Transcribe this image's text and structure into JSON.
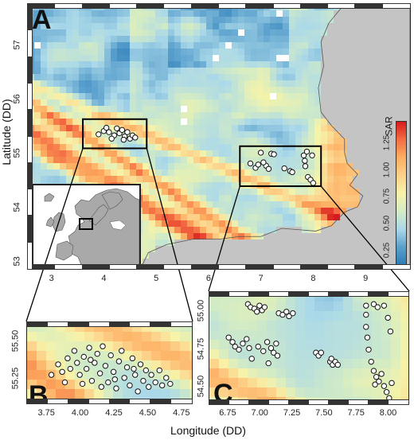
{
  "panels": {
    "A": {
      "letter": "A",
      "x_ticks": [
        "3",
        "4",
        "5",
        "6",
        "7",
        "8",
        "9"
      ],
      "y_ticks": [
        "53",
        "54",
        "55",
        "56",
        "57"
      ],
      "xlim": [
        2.55,
        9.85
      ],
      "ylim": [
        52.85,
        57.75
      ]
    },
    "B": {
      "letter": "B",
      "x_ticks": [
        "3.75",
        "4.00",
        "4.25",
        "4.50",
        "4.75"
      ],
      "y_ticks": [
        "55.25",
        "55.50"
      ],
      "xlim": [
        3.6,
        4.82
      ],
      "ylim": [
        55.08,
        55.62
      ]
    },
    "C": {
      "letter": "C",
      "x_ticks": [
        "6.75",
        "7.00",
        "7.25",
        "7.50",
        "7.75",
        "8.00"
      ],
      "y_ticks": [
        "54.50",
        "54.75",
        "55.00"
      ],
      "xlim": [
        6.6,
        8.15
      ],
      "ylim": [
        54.38,
        55.12
      ]
    }
  },
  "axes": {
    "x_title": "Longitude (DD)",
    "y_title": "Latitude (DD)"
  },
  "colorbar": {
    "title": "SAR",
    "ticks": [
      "0.25",
      "0.50",
      "0.75",
      "1.00",
      "1.25"
    ],
    "range": [
      0.1,
      1.45
    ],
    "colors": [
      "#2c7bb6",
      "#5aa0cd",
      "#abd9e9",
      "#d4ecc4",
      "#f7f3a8",
      "#fdd18a",
      "#fdae61",
      "#f46d43",
      "#d7191c"
    ]
  },
  "colors": {
    "land": "#c4c4c4",
    "frame": "#222222",
    "tick_bar_dark": "#333333",
    "tick_bar_light": "#ffffff"
  },
  "stations_B": [
    [
      3.78,
      55.27
    ],
    [
      3.83,
      55.34
    ],
    [
      3.86,
      55.29
    ],
    [
      3.9,
      55.38
    ],
    [
      3.92,
      55.31
    ],
    [
      3.95,
      55.43
    ],
    [
      3.97,
      55.35
    ],
    [
      3.99,
      55.27
    ],
    [
      4.02,
      55.39
    ],
    [
      4.04,
      55.31
    ],
    [
      4.06,
      55.45
    ],
    [
      4.08,
      55.23
    ],
    [
      4.1,
      55.35
    ],
    [
      4.12,
      55.41
    ],
    [
      4.14,
      55.28
    ],
    [
      4.16,
      55.46
    ],
    [
      4.18,
      55.33
    ],
    [
      4.2,
      55.22
    ],
    [
      4.22,
      55.4
    ],
    [
      4.24,
      55.29
    ],
    [
      4.26,
      55.18
    ],
    [
      4.28,
      55.36
    ],
    [
      4.3,
      55.43
    ],
    [
      4.32,
      55.25
    ],
    [
      4.34,
      55.32
    ],
    [
      4.36,
      55.2
    ],
    [
      4.38,
      55.38
    ],
    [
      4.4,
      55.27
    ],
    [
      4.42,
      55.16
    ],
    [
      4.44,
      55.34
    ],
    [
      4.46,
      55.23
    ],
    [
      4.48,
      55.3
    ],
    [
      4.5,
      55.19
    ],
    [
      4.52,
      55.27
    ],
    [
      4.55,
      55.22
    ],
    [
      4.58,
      55.3
    ],
    [
      4.6,
      55.2
    ],
    [
      4.63,
      55.25
    ],
    [
      4.66,
      55.21
    ],
    [
      3.88,
      55.22
    ],
    [
      4.01,
      55.21
    ],
    [
      4.15,
      55.19
    ],
    [
      4.25,
      55.24
    ],
    [
      4.39,
      55.31
    ],
    [
      4.07,
      55.37
    ]
  ],
  "stations_C": [
    [
      6.75,
      54.82
    ],
    [
      6.78,
      54.79
    ],
    [
      6.8,
      54.76
    ],
    [
      6.83,
      54.74
    ],
    [
      6.86,
      54.78
    ],
    [
      6.89,
      54.81
    ],
    [
      6.91,
      54.75
    ],
    [
      6.9,
      55.04
    ],
    [
      6.92,
      55.02
    ],
    [
      6.95,
      55.01
    ],
    [
      6.97,
      54.99
    ],
    [
      6.99,
      55.03
    ],
    [
      7.01,
      55.0
    ],
    [
      7.03,
      55.02
    ],
    [
      6.93,
      54.68
    ],
    [
      6.98,
      54.76
    ],
    [
      7.02,
      54.73
    ],
    [
      7.05,
      54.79
    ],
    [
      7.08,
      54.75
    ],
    [
      7.1,
      54.72
    ],
    [
      7.12,
      54.78
    ],
    [
      7.06,
      54.65
    ],
    [
      7.13,
      54.7
    ],
    [
      7.14,
      54.98
    ],
    [
      7.17,
      54.97
    ],
    [
      7.2,
      54.99
    ],
    [
      7.22,
      54.96
    ],
    [
      7.25,
      54.98
    ],
    [
      7.43,
      54.72
    ],
    [
      7.45,
      54.7
    ],
    [
      7.47,
      54.72
    ],
    [
      7.54,
      54.66
    ],
    [
      7.56,
      54.64
    ],
    [
      7.58,
      54.66
    ],
    [
      7.6,
      54.64
    ],
    [
      7.55,
      54.68
    ],
    [
      7.82,
      55.03
    ],
    [
      7.88,
      55.04
    ],
    [
      7.91,
      55.02
    ],
    [
      7.96,
      55.03
    ],
    [
      7.82,
      54.97
    ],
    [
      7.82,
      54.89
    ],
    [
      7.83,
      54.82
    ],
    [
      7.84,
      54.74
    ],
    [
      7.86,
      54.66
    ],
    [
      7.88,
      54.6
    ],
    [
      7.9,
      54.56
    ],
    [
      7.92,
      54.53
    ],
    [
      7.94,
      54.58
    ],
    [
      7.96,
      54.5
    ],
    [
      7.98,
      54.46
    ],
    [
      8.0,
      54.42
    ],
    [
      8.02,
      54.52
    ],
    [
      7.89,
      54.51
    ],
    [
      7.99,
      54.95
    ],
    [
      8.01,
      54.86
    ]
  ],
  "stations_A_cluster_B": [
    [
      4.3,
      55.36
    ],
    [
      4.35,
      55.42
    ],
    [
      4.4,
      55.3
    ],
    [
      4.45,
      55.38
    ],
    [
      4.5,
      55.26
    ],
    [
      4.2,
      55.32
    ],
    [
      4.1,
      55.38
    ],
    [
      4.25,
      55.45
    ],
    [
      4.0,
      55.4
    ],
    [
      3.9,
      55.34
    ],
    [
      4.55,
      55.32
    ],
    [
      4.15,
      55.26
    ],
    [
      4.6,
      55.28
    ],
    [
      4.05,
      55.46
    ],
    [
      4.38,
      55.24
    ]
  ],
  "stations_A_cluster_C": [
    [
      6.8,
      54.8
    ],
    [
      6.9,
      54.72
    ],
    [
      7.0,
      55.0
    ],
    [
      7.1,
      54.76
    ],
    [
      7.2,
      54.98
    ],
    [
      7.05,
      54.82
    ],
    [
      7.45,
      54.71
    ],
    [
      7.56,
      54.66
    ],
    [
      7.6,
      54.64
    ],
    [
      7.82,
      54.95
    ],
    [
      7.85,
      54.75
    ],
    [
      7.9,
      54.55
    ],
    [
      7.95,
      54.5
    ],
    [
      8.0,
      54.44
    ],
    [
      7.88,
      55.02
    ],
    [
      6.95,
      54.78
    ],
    [
      7.15,
      54.7
    ],
    [
      7.25,
      54.97
    ],
    [
      7.98,
      54.95
    ],
    [
      7.84,
      54.85
    ]
  ]
}
